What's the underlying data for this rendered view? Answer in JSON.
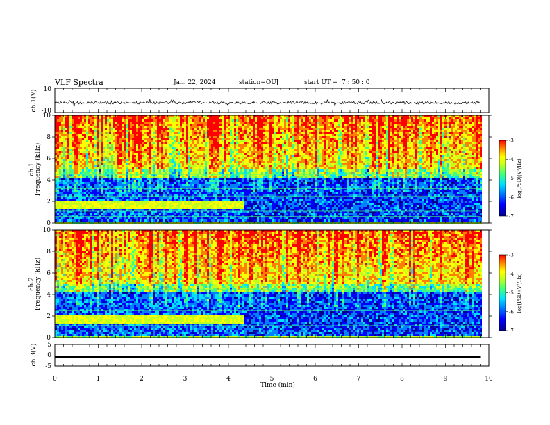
{
  "header": {
    "title": "VLF Spectra",
    "date": "Jan. 22, 2024",
    "station": "station=OUJ",
    "start": "start UT =  7 : 50 : 0"
  },
  "colors": {
    "palette": [
      "#000090",
      "#0000ff",
      "#0080ff",
      "#00e0ff",
      "#40ff80",
      "#c0ff20",
      "#ffff00",
      "#ff8000",
      "#ff0000"
    ],
    "wave": "#000000"
  },
  "chart_data": [
    {
      "type": "line",
      "panel": "ch1-waveform",
      "ylabel": "ch.1(V)",
      "ylim": [
        -10,
        10
      ],
      "yticks": [
        "10",
        "-10"
      ],
      "xlim": [
        0,
        10
      ],
      "description": "noisy waveform centred near -2 V with spikes, ending at ~9.8 min"
    },
    {
      "type": "heatmap",
      "panel": "ch1-spectrogram",
      "ylabel": "ch.1 Frequency (kHz)",
      "ylim": [
        0,
        10
      ],
      "yticks": [
        "0",
        "2",
        "4",
        "6",
        "8",
        "10"
      ],
      "xlim": [
        0,
        10
      ],
      "colorbar": {
        "label": "log(PSD)(V²/Hz)",
        "ticks": [
          "-3",
          "-4",
          "-5",
          "-6",
          "-7"
        ],
        "range": [
          -7,
          -3
        ]
      },
      "features": {
        "transition_time_min": 4.35,
        "band_before_khz": [
          1.4,
          2.2
        ],
        "data_end_min": 9.8
      }
    },
    {
      "type": "heatmap",
      "panel": "ch2-spectrogram",
      "ylabel": "ch.2 Frequency (kHz)",
      "ylim": [
        0,
        10
      ],
      "yticks": [
        "0",
        "2",
        "4",
        "6",
        "8",
        "10"
      ],
      "xlim": [
        0,
        10
      ],
      "colorbar": {
        "label": "log(PSD)(V²/Hz)",
        "ticks": [
          "-3",
          "-4",
          "-5",
          "-6",
          "-7"
        ],
        "range": [
          -7,
          -3
        ]
      },
      "features": {
        "transition_time_min": 4.35,
        "band_before_khz": [
          1.4,
          2.2
        ],
        "data_end_min": 9.8
      }
    },
    {
      "type": "line",
      "panel": "ch3-waveform",
      "ylabel": "ch.3(V)",
      "ylim": [
        -5,
        5
      ],
      "yticks": [
        "5",
        "0",
        "-5"
      ],
      "xlim": [
        0,
        10
      ],
      "values_constant_v": -0.8
    }
  ],
  "xaxis": {
    "label": "Time (min)",
    "ticks": [
      "0",
      "1",
      "2",
      "3",
      "4",
      "5",
      "6",
      "7",
      "8",
      "9",
      "10"
    ]
  }
}
